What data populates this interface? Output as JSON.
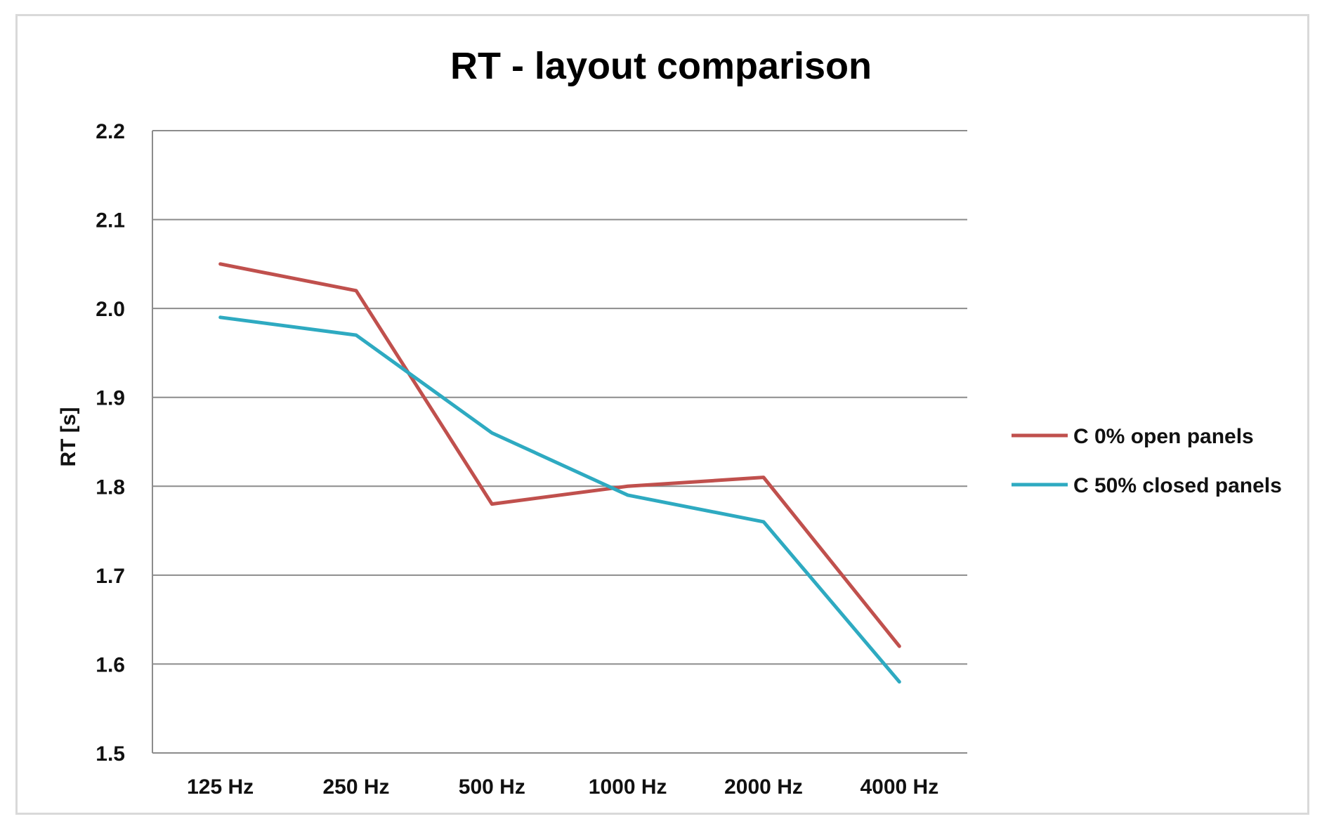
{
  "chart_data": {
    "type": "line",
    "title": "RT - layout comparison",
    "xlabel": "",
    "ylabel": "RT [s]",
    "categories": [
      "125 Hz",
      "250 Hz",
      "500 Hz",
      "1000 Hz",
      "2000 Hz",
      "4000 Hz"
    ],
    "ylim": [
      1.5,
      2.2
    ],
    "yticks": [
      "1.5",
      "1.6",
      "1.7",
      "1.8",
      "1.9",
      "2.0",
      "2.1",
      "2.2"
    ],
    "grid": true,
    "legend_position": "right",
    "series": [
      {
        "name": "C 0% open panels",
        "color": "#c0504d",
        "values": [
          2.05,
          2.02,
          1.78,
          1.8,
          1.81,
          1.62
        ]
      },
      {
        "name": "C 50% closed panels",
        "color": "#2eaac1",
        "values": [
          1.99,
          1.97,
          1.86,
          1.79,
          1.76,
          1.58
        ]
      }
    ]
  }
}
